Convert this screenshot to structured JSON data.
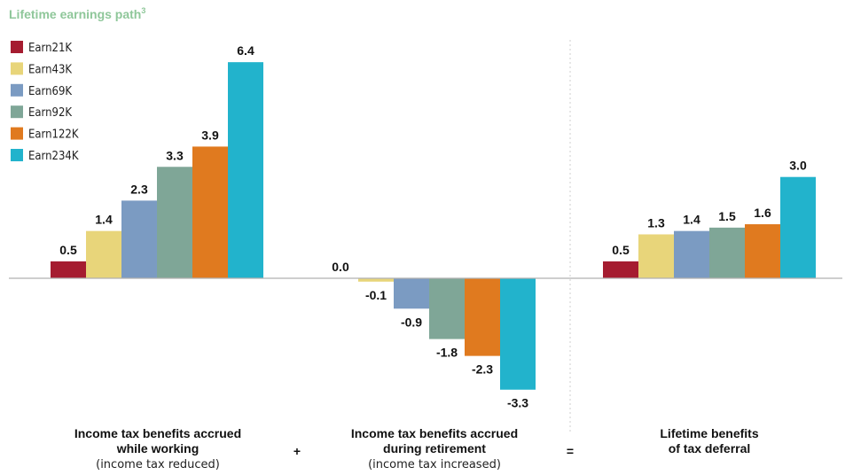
{
  "chart_data": {
    "type": "bar",
    "legend_title": "Lifetime earnings path",
    "legend_title_superscript": "3",
    "legend_placement": "top-left",
    "colors": {
      "legend_title": "#8fc79a",
      "axis_line": "#b0b0b0",
      "divider": "#cfcfcf"
    },
    "groups": [
      {
        "title_lines": [
          "Income tax benefits accrued",
          "while working"
        ],
        "subtitle": "(income tax reduced)"
      },
      {
        "title_lines": [
          "Income tax benefits accrued",
          "during retirement"
        ],
        "subtitle": "(income tax increased)"
      },
      {
        "title_lines": [
          "Lifetime benefits",
          "of tax deferral"
        ],
        "subtitle": ""
      }
    ],
    "operators": [
      "+",
      "="
    ],
    "series": [
      {
        "name": "Earn21K",
        "color": "#a51c30",
        "values": [
          0.5,
          0.0,
          0.5
        ]
      },
      {
        "name": "Earn43K",
        "color": "#e8d57a",
        "values": [
          1.4,
          -0.1,
          1.3
        ]
      },
      {
        "name": "Earn69K",
        "color": "#7b9bc2",
        "values": [
          2.3,
          -0.9,
          1.4
        ]
      },
      {
        "name": "Earn92K",
        "color": "#7fa697",
        "values": [
          3.3,
          -1.8,
          1.5
        ]
      },
      {
        "name": "Earn122K",
        "color": "#e07a1f",
        "values": [
          3.9,
          -2.3,
          1.6
        ]
      },
      {
        "name": "Earn234K",
        "color": "#22b3cc",
        "values": [
          6.4,
          -3.3,
          3.0
        ]
      }
    ],
    "value_labels": [
      [
        "0.5",
        "1.4",
        "2.3",
        "3.3",
        "3.9",
        "6.4"
      ],
      [
        "0.0",
        "-0.1",
        "-0.9",
        "-1.8",
        "-2.3",
        "-3.3"
      ],
      [
        "0.5",
        "1.3",
        "1.4",
        "1.5",
        "1.6",
        "3.0"
      ]
    ],
    "ylim": [
      -3.3,
      6.4
    ],
    "grid": false
  }
}
